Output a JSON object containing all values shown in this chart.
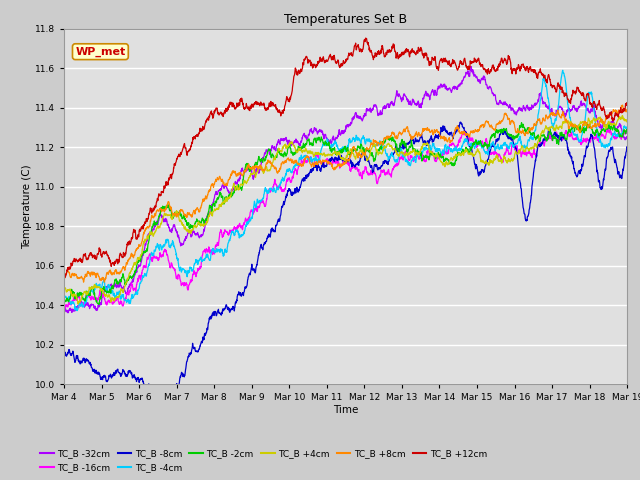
{
  "title": "Temperatures Set B",
  "xlabel": "Time",
  "ylabel": "Temperature (C)",
  "ylim": [
    10.0,
    11.8
  ],
  "yticks": [
    10.0,
    10.2,
    10.4,
    10.6,
    10.8,
    11.0,
    11.2,
    11.4,
    11.6,
    11.8
  ],
  "xtick_labels": [
    "Mar 4",
    "Mar 5",
    "Mar 6",
    "Mar 7",
    "Mar 8",
    "Mar 9",
    "Mar 10",
    "Mar 11",
    "Mar 12",
    "Mar 13",
    "Mar 14",
    "Mar 15",
    "Mar 16",
    "Mar 17",
    "Mar 18",
    "Mar 19"
  ],
  "background_color": "#cccccc",
  "plot_bg": "#e0e0e0",
  "series_colors": [
    "#aa00ff",
    "#ff00ff",
    "#0000cc",
    "#00ccff",
    "#00cc00",
    "#cccc00",
    "#ff8800",
    "#cc0000"
  ],
  "series_labels": [
    "TC_B -32cm",
    "TC_B -16cm",
    "TC_B -8cm",
    "TC_B -4cm",
    "TC_B -2cm",
    "TC_B +4cm",
    "TC_B +8cm",
    "TC_B +12cm"
  ],
  "annotation_text": "WP_met",
  "annotation_box_color": "#ffffcc",
  "annotation_box_edge": "#cc8800",
  "annotation_text_color": "#cc0000",
  "num_points": 2160,
  "seed": 42
}
